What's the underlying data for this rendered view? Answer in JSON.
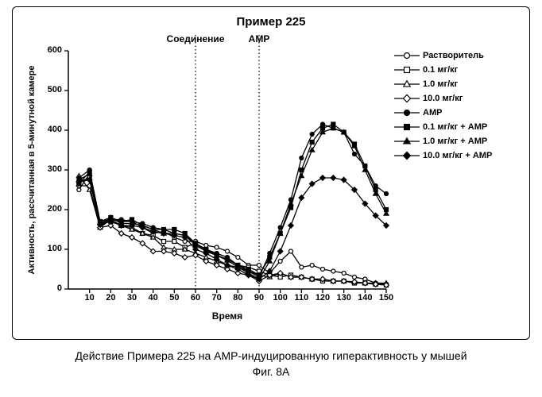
{
  "chart": {
    "type": "line",
    "title": "Пример 225",
    "xlabel": "Время",
    "ylabel": "Активность, рассчитанная в 5-минутной камере",
    "xlim": [
      0,
      150
    ],
    "ylim": [
      0,
      600
    ],
    "xticks": [
      10,
      20,
      30,
      40,
      50,
      60,
      70,
      80,
      90,
      100,
      110,
      120,
      130,
      140,
      150
    ],
    "yticks": [
      0,
      100,
      200,
      300,
      400,
      500,
      600
    ],
    "axis_color": "#000000",
    "tick_fontsize": 11,
    "label_fontsize": 12,
    "title_fontsize": 15,
    "background": "#ffffff",
    "border_radius": 6,
    "vlines": [
      {
        "x": 60,
        "label": "Соединение",
        "style": "dotted",
        "color": "#000000"
      },
      {
        "x": 90,
        "label": "AMP",
        "style": "dotted",
        "color": "#000000"
      }
    ],
    "xvalues": [
      5,
      10,
      15,
      20,
      25,
      30,
      35,
      40,
      45,
      50,
      55,
      60,
      65,
      70,
      75,
      80,
      85,
      90,
      95,
      100,
      105,
      110,
      115,
      120,
      125,
      130,
      135,
      140,
      145,
      150
    ],
    "series": [
      {
        "name": "Растворитель",
        "marker": "circle",
        "filled": false,
        "color": "#000000",
        "y": [
          250,
          290,
          165,
          175,
          170,
          170,
          155,
          140,
          145,
          130,
          120,
          120,
          110,
          105,
          95,
          80,
          60,
          60,
          40,
          70,
          95,
          55,
          60,
          50,
          45,
          40,
          30,
          25,
          15,
          12
        ]
      },
      {
        "name": "0.1 мг/кг",
        "marker": "square",
        "filled": false,
        "color": "#000000",
        "y": [
          270,
          280,
          165,
          170,
          160,
          155,
          140,
          135,
          120,
          120,
          105,
          115,
          95,
          85,
          75,
          60,
          55,
          45,
          35,
          30,
          35,
          30,
          25,
          20,
          20,
          20,
          15,
          15,
          12,
          10
        ]
      },
      {
        "name": "1.0 мг/кг",
        "marker": "triangle",
        "filled": false,
        "color": "#000000",
        "y": [
          285,
          250,
          155,
          175,
          160,
          150,
          140,
          130,
          105,
          100,
          100,
          90,
          80,
          70,
          60,
          55,
          45,
          35,
          30,
          40,
          30,
          30,
          25,
          25,
          20,
          20,
          18,
          15,
          15,
          15
        ]
      },
      {
        "name": "10.0 мг/кг",
        "marker": "diamond",
        "filled": false,
        "color": "#000000",
        "y": [
          260,
          260,
          155,
          160,
          140,
          130,
          115,
          95,
          95,
          90,
          80,
          85,
          70,
          60,
          50,
          40,
          35,
          20,
          35,
          40,
          30,
          30,
          25,
          25,
          20,
          20,
          18,
          15,
          12,
          10
        ]
      },
      {
        "name": "AMP",
        "marker": "circle",
        "filled": true,
        "color": "#000000",
        "y": [
          280,
          300,
          170,
          175,
          175,
          170,
          165,
          155,
          150,
          140,
          135,
          115,
          100,
          90,
          80,
          60,
          45,
          30,
          90,
          155,
          225,
          330,
          390,
          415,
          405,
          395,
          340,
          310,
          260,
          240
        ]
      },
      {
        "name": "0.1 мг/кг + AMP",
        "marker": "square",
        "filled": true,
        "color": "#000000",
        "y": [
          265,
          295,
          170,
          180,
          170,
          175,
          160,
          150,
          150,
          150,
          140,
          115,
          100,
          85,
          75,
          60,
          50,
          35,
          80,
          140,
          205,
          300,
          370,
          405,
          415,
          395,
          365,
          310,
          250,
          200
        ]
      },
      {
        "name": "1.0 мг/кг + AMP",
        "marker": "triangle",
        "filled": true,
        "color": "#000000",
        "y": [
          275,
          290,
          168,
          180,
          165,
          165,
          160,
          150,
          140,
          140,
          135,
          110,
          95,
          85,
          72,
          55,
          40,
          25,
          70,
          140,
          215,
          285,
          350,
          395,
          405,
          395,
          360,
          300,
          240,
          190
        ]
      },
      {
        "name": "10.0 мг/кг + AMP",
        "marker": "diamond",
        "filled": true,
        "color": "#000000",
        "y": [
          270,
          275,
          162,
          170,
          160,
          160,
          155,
          145,
          140,
          135,
          130,
          100,
          90,
          75,
          60,
          50,
          35,
          25,
          45,
          95,
          160,
          230,
          265,
          280,
          280,
          275,
          250,
          215,
          185,
          160
        ]
      }
    ],
    "line_width": 1.3,
    "marker_size": 5
  },
  "caption": "Действие Примера 225 на AMP-индуцированную гиперактивность у мышей",
  "figure_label": "Фиг. 8A"
}
